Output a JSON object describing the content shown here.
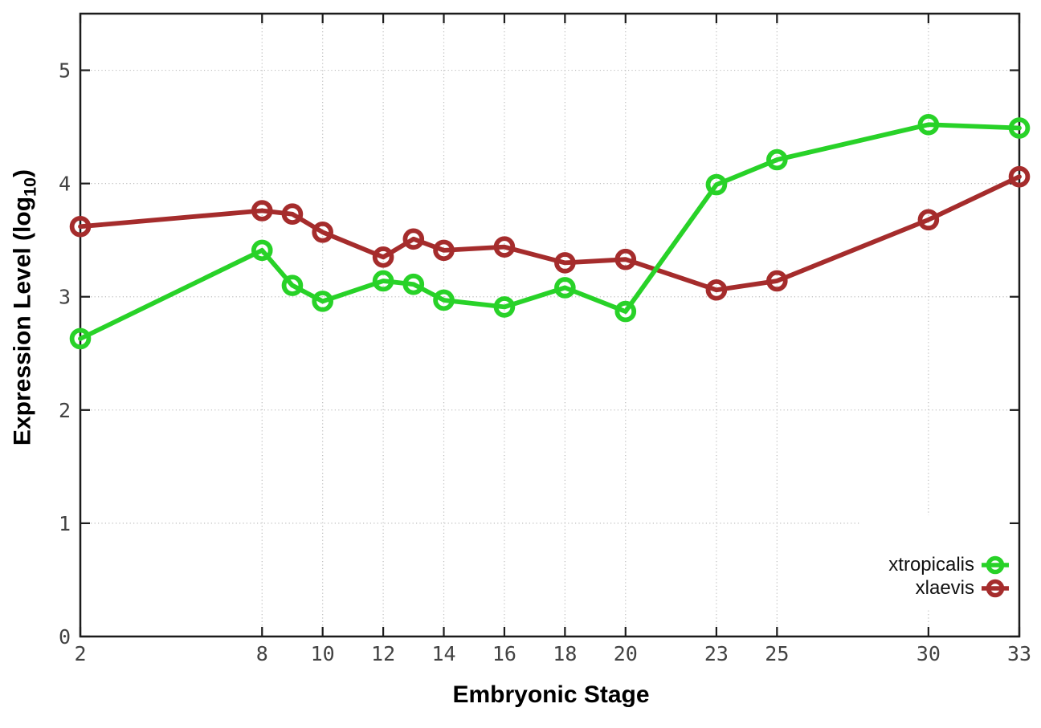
{
  "chart_data": {
    "type": "line",
    "title": "",
    "xlabel": "Embryonic Stage",
    "ylabel": "Expression Level (log10)",
    "ylabel_parts": {
      "main": "Expression Level (log",
      "sub": "10",
      "end": ")"
    },
    "x": [
      2,
      8,
      9,
      10,
      12,
      13,
      14,
      16,
      18,
      20,
      23,
      25,
      30,
      33
    ],
    "xticks": [
      2,
      8,
      10,
      12,
      14,
      16,
      18,
      20,
      23,
      25,
      30,
      33
    ],
    "yticks": [
      0,
      1,
      2,
      3,
      4,
      5
    ],
    "xlim": [
      2,
      33
    ],
    "ylim": [
      0,
      5.5
    ],
    "grid": true,
    "grid_style": "dotted",
    "legend_position": "inside-right",
    "marker": "open-circle",
    "series": [
      {
        "name": "xtropicalis",
        "color": "#28d228",
        "values": [
          2.63,
          3.41,
          3.1,
          2.96,
          3.14,
          3.11,
          2.97,
          2.91,
          3.08,
          2.87,
          3.99,
          4.21,
          4.52,
          4.49
        ]
      },
      {
        "name": "xlaevis",
        "color": "#a52c2c",
        "values": [
          3.62,
          3.76,
          3.73,
          3.57,
          3.35,
          3.51,
          3.41,
          3.44,
          3.3,
          3.33,
          3.06,
          3.14,
          3.68,
          4.06
        ]
      }
    ],
    "colors": {
      "frame": "#1c1c1c",
      "grid": "#bdbdbd",
      "tick_label": "#424242"
    }
  }
}
